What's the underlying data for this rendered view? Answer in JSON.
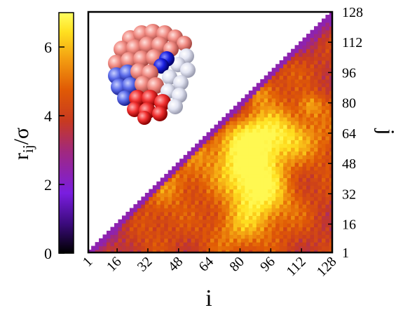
{
  "chart_data": {
    "type": "heatmap",
    "title": "",
    "xlabel": "i",
    "ylabel": "j",
    "colorbar_label": {
      "base": "r",
      "sub": "ij",
      "suffix": "/σ"
    },
    "x_range": [
      1,
      128
    ],
    "y_range": [
      1,
      128
    ],
    "x_ticks": [
      "1",
      "16",
      "32",
      "48",
      "64",
      "80",
      "96",
      "112",
      "128"
    ],
    "y_ticks": [
      "1",
      "16",
      "32",
      "48",
      "64",
      "80",
      "96",
      "112",
      "128"
    ],
    "x_tick_values": [
      1,
      16,
      32,
      48,
      64,
      80,
      96,
      112,
      128
    ],
    "y_tick_values": [
      1,
      16,
      32,
      48,
      64,
      80,
      96,
      112,
      128
    ],
    "colorbar_range": [
      0,
      7
    ],
    "colorbar_ticks": [
      "0",
      "2",
      "4",
      "6"
    ],
    "colorbar_tick_values": [
      0,
      2,
      4,
      6
    ],
    "colormap": [
      "#000000",
      "#3a0a7a",
      "#7a1ee0",
      "#a02880",
      "#c83a20",
      "#e05a05",
      "#f29a10",
      "#ffe020",
      "#ffff60"
    ],
    "inset": "space-filling model of the folded 128-bead chain, coloured by sequence position",
    "region_means": [
      {
        "i_range": [
          1,
          128
        ],
        "j_range": [
          1,
          128
        ],
        "description": "lower triangle (i > j) coloured by distance, upper triangle empty"
      }
    ]
  }
}
